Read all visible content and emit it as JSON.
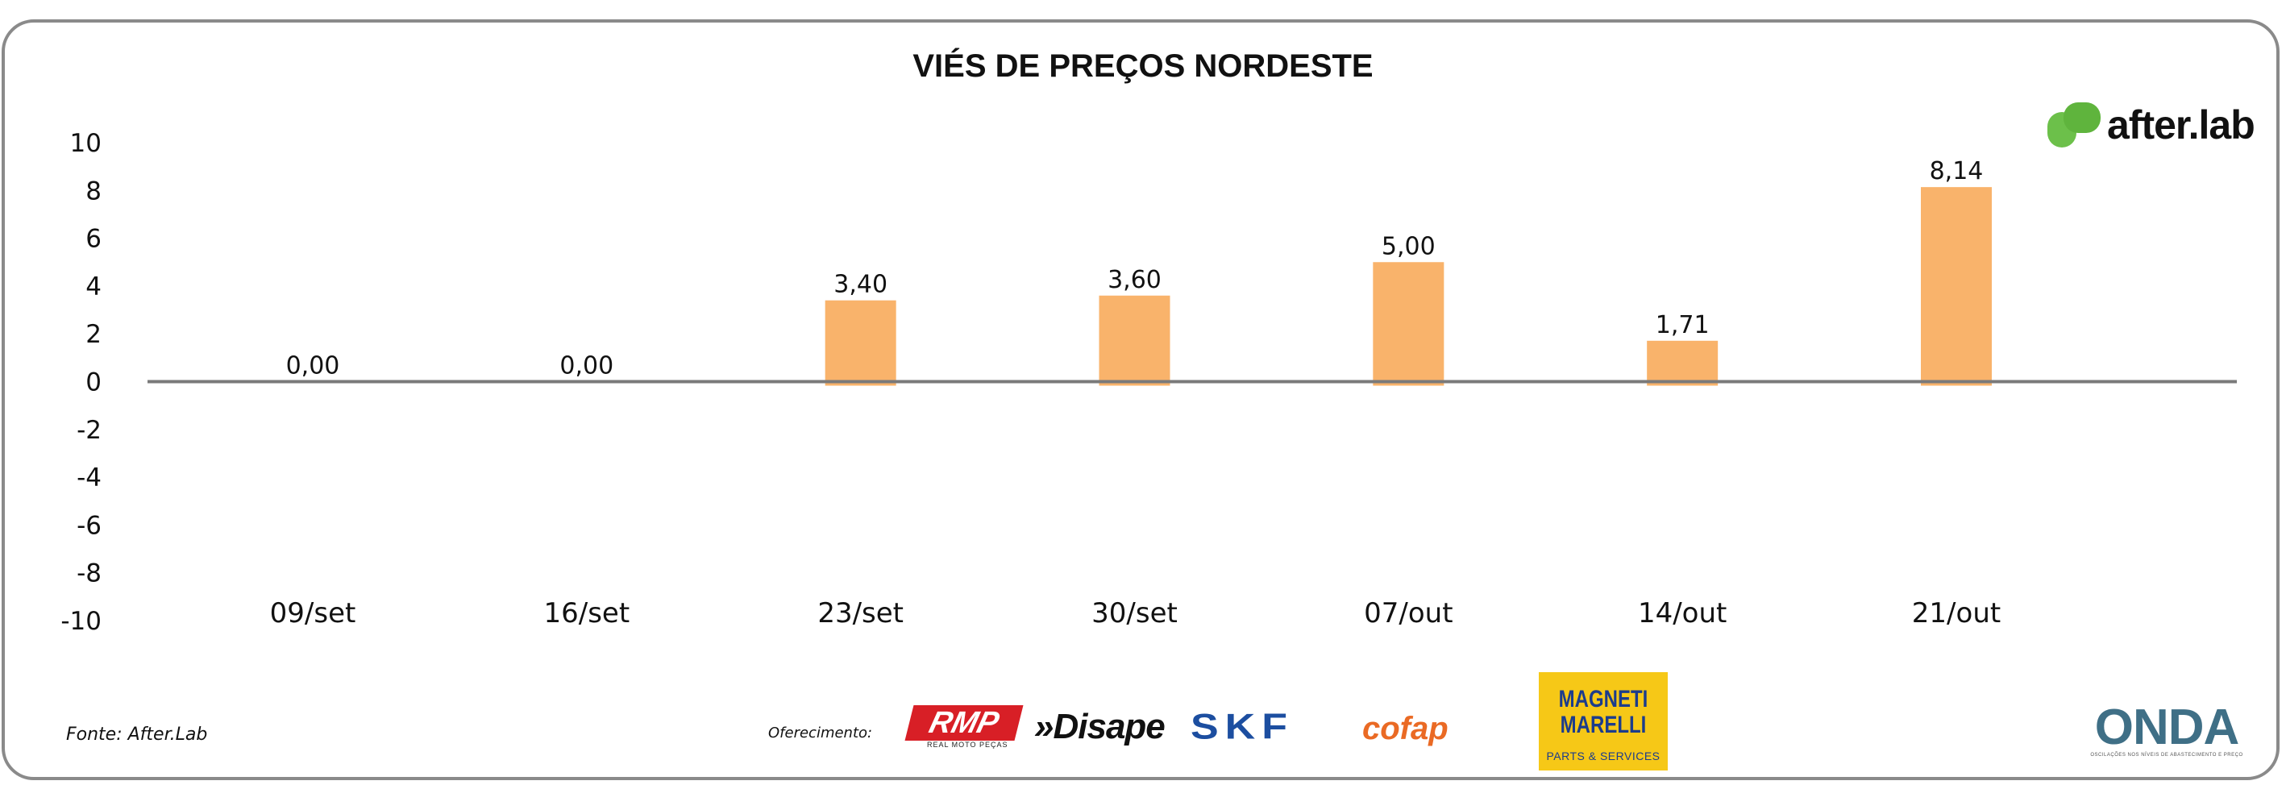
{
  "chart_data": {
    "type": "bar",
    "title": "VIÉS DE PREÇOS NORDESTE",
    "categories": [
      "09/set",
      "16/set",
      "23/set",
      "30/set",
      "07/out",
      "14/out",
      "21/out"
    ],
    "values": [
      0.0,
      0.0,
      3.4,
      3.6,
      5.0,
      1.71,
      8.14
    ],
    "data_labels": [
      "0,00",
      "0,00",
      "3,40",
      "3,60",
      "5,00",
      "1,71",
      "8,14"
    ],
    "ylim": [
      -10,
      10
    ],
    "yticks": [
      "10",
      "8",
      "6",
      "4",
      "2",
      "0",
      "-2",
      "-4",
      "-6",
      "-8",
      "-10"
    ],
    "xlabel": "",
    "ylabel": "",
    "grid": false,
    "bar_color": "#f9b36b",
    "axis_color": "#7a7a7a"
  },
  "branding": {
    "logo_text": "after.lab",
    "logo_color": "#6cc04a"
  },
  "footer": {
    "source": "Fonte: After.Lab",
    "sponsor_label": "Oferecimento:",
    "sponsors": {
      "rmp": "RMP",
      "rmp_sub": "REAL MOTO PEÇAS",
      "disape": "»Disape",
      "skf": "SKF",
      "cofap": "cofap",
      "magneti": "MAGNETI MARELLI",
      "magneti_sub": "PARTS & SERVICES",
      "onda": "ONDA",
      "onda_sub": "OSCILAÇÕES NOS NÍVEIS DE ABASTECIMENTO E PREÇO"
    }
  }
}
